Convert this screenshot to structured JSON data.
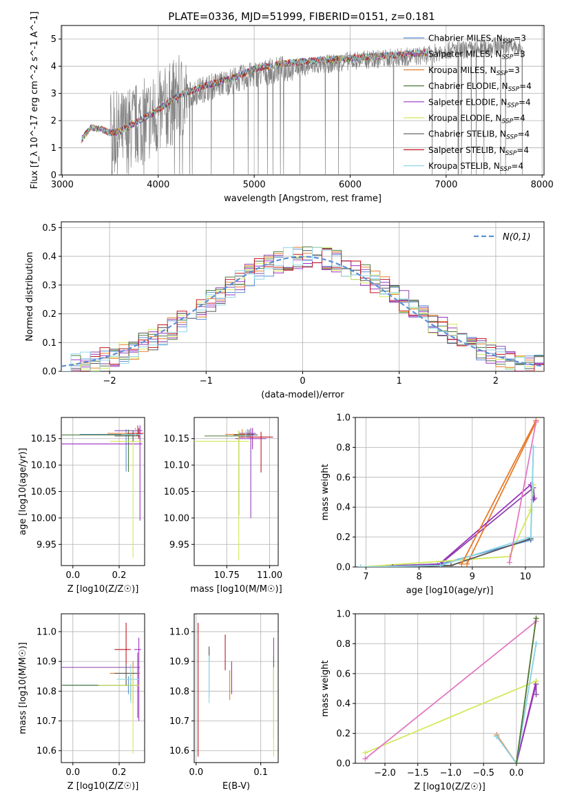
{
  "title": "PLATE=0336, MJD=51999, FIBERID=0151, z=0.181",
  "models": [
    {
      "name": "Chabrier MILES",
      "nssp": "3",
      "color": "#5b8fd6"
    },
    {
      "name": "Salpeter MILES",
      "nssp": "3",
      "color": "#8e44ad"
    },
    {
      "name": "Kroupa MILES",
      "nssp": "3",
      "color": "#e87a2a"
    },
    {
      "name": "Chabrier ELODIE",
      "nssp": "4",
      "color": "#4a7a3a"
    },
    {
      "name": "Salpeter ELODIE",
      "nssp": "4",
      "color": "#9b30c0"
    },
    {
      "name": "Kroupa ELODIE",
      "nssp": "4",
      "color": "#d4e85a"
    },
    {
      "name": "Chabrier STELIB",
      "nssp": "4",
      "color": "#555555"
    },
    {
      "name": "Salpeter STELIB",
      "nssp": "4",
      "color": "#c0141e"
    },
    {
      "name": "Kroupa STELIB",
      "nssp": "4",
      "color": "#8fd6e6"
    }
  ],
  "chart_data": [
    {
      "id": "spectrum",
      "type": "line",
      "xlabel": "wavelength [Angstrom, rest frame]",
      "ylabel": "Flux [f_λ 10^-17 erg cm^-2 s^-1 A^-1]",
      "xlim": [
        2990,
        8020
      ],
      "ylim": [
        0,
        5.5
      ],
      "xticks": [
        3000,
        4000,
        5000,
        6000,
        7000,
        8000
      ],
      "yticks": [
        0,
        1,
        2,
        3,
        4,
        5
      ],
      "data_color": "#808080",
      "data_envelope": {
        "x": [
          3200,
          3300,
          3400,
          3500,
          3600,
          3800,
          4000,
          4200,
          4500,
          4800,
          5000,
          5300,
          5600,
          6000,
          6400,
          6800,
          7000,
          7300,
          7600,
          7800
        ],
        "y": [
          1.3,
          1.7,
          1.7,
          1.5,
          1.5,
          1.9,
          2.2,
          2.8,
          3.2,
          3.5,
          3.7,
          3.9,
          4.0,
          4.2,
          4.3,
          4.4,
          4.6,
          4.6,
          4.8,
          4.6
        ]
      },
      "model_curve": {
        "x": [
          3200,
          3300,
          3400,
          3500,
          3600,
          3800,
          4000,
          4200,
          4500,
          4800,
          5000,
          5300,
          5600,
          6000,
          6400,
          6800
        ],
        "y": [
          1.3,
          1.75,
          1.7,
          1.55,
          1.6,
          2.0,
          2.4,
          2.9,
          3.3,
          3.6,
          3.9,
          4.1,
          4.2,
          4.3,
          4.4,
          4.5
        ]
      }
    },
    {
      "id": "residuals",
      "type": "histogram",
      "xlabel": "(data-model)/error",
      "ylabel": "Normed distribution",
      "xlim": [
        -2.5,
        2.5
      ],
      "ylim": [
        0,
        0.52
      ],
      "xticks": [
        -2,
        -1,
        0,
        1,
        2
      ],
      "yticks": [
        0.0,
        0.1,
        0.2,
        0.3,
        0.4,
        0.5
      ],
      "bin_width": 0.1,
      "legend_label": "N(0,1)",
      "gaussian": {
        "mean": 0,
        "sigma": 1,
        "color": "#5b8fd6"
      }
    },
    {
      "id": "age_vs_Z",
      "type": "scatter",
      "xlabel": "Z [log10(Z/Z☉)]",
      "ylabel": "age [log10(age/yr)]",
      "xlim": [
        -0.05,
        0.31
      ],
      "ylim": [
        9.91,
        10.19
      ],
      "xticks": [
        0.0,
        0.2
      ],
      "yticks": [
        9.95,
        10.0,
        10.05,
        10.1,
        10.15
      ],
      "points": [
        {
          "x": 0.23,
          "y": 10.158,
          "xerr": [
            0.2,
            0.05
          ],
          "yerr": [
            0.07,
            0.01
          ],
          "model": 0
        },
        {
          "x": 0.28,
          "y": 10.165,
          "xerr": [
            0.1,
            0.02
          ],
          "yerr": [
            0.01,
            0.01
          ],
          "model": 1
        },
        {
          "x": 0.27,
          "y": 10.16,
          "xerr": [
            0.12,
            0.02
          ],
          "yerr": [
            0.005,
            0.01
          ],
          "model": 2
        },
        {
          "x": 0.24,
          "y": 10.157,
          "xerr": [
            0.3,
            0.04
          ],
          "yerr": [
            0.07,
            0.01
          ],
          "model": 3
        },
        {
          "x": 0.29,
          "y": 10.14,
          "xerr": [
            0.36,
            0.01
          ],
          "yerr": [
            0.145,
            0.035
          ],
          "model": 4
        },
        {
          "x": 0.26,
          "y": 10.145,
          "xerr": [
            0.1,
            0.04
          ],
          "yerr": [
            0.22,
            0.02
          ],
          "model": 5
        },
        {
          "x": 0.26,
          "y": 10.155,
          "xerr": [
            0.08,
            0.03
          ],
          "yerr": [
            0.01,
            0.01
          ],
          "model": 6
        },
        {
          "x": 0.285,
          "y": 10.16,
          "xerr": [
            0.05,
            0.02
          ],
          "yerr": [
            0.01,
            0.01
          ],
          "model": 7
        },
        {
          "x": 0.27,
          "y": 10.158,
          "xerr": [
            0.06,
            0.03
          ],
          "yerr": [
            0.005,
            0.01
          ],
          "model": 8
        }
      ]
    },
    {
      "id": "age_vs_mass",
      "type": "scatter",
      "xlabel": "mass [log10(M/M☉)]",
      "ylabel": "",
      "xlim": [
        10.56,
        11.05
      ],
      "ylim": [
        9.91,
        10.19
      ],
      "xticks": [
        10.75,
        11.0
      ],
      "yticks": [
        9.95,
        10.0,
        10.05,
        10.1,
        10.15
      ],
      "points": [
        {
          "x": 10.87,
          "y": 10.158,
          "xerr": [
            0.05,
            0.04
          ],
          "yerr": [
            0.005,
            0.01
          ],
          "model": 0
        },
        {
          "x": 10.89,
          "y": 10.16,
          "xerr": [
            0.07,
            0.03
          ],
          "yerr": [
            0.16,
            0.01
          ],
          "model": 1
        },
        {
          "x": 10.84,
          "y": 10.158,
          "xerr": [
            0.1,
            0.05
          ],
          "yerr": [
            0.005,
            0.01
          ],
          "model": 2
        },
        {
          "x": 10.82,
          "y": 10.155,
          "xerr": [
            0.2,
            0.07
          ],
          "yerr": [
            0.15,
            0.01
          ],
          "model": 3
        },
        {
          "x": 10.9,
          "y": 10.15,
          "xerr": [
            0.1,
            0.08
          ],
          "yerr": [
            0.02,
            0.02
          ],
          "model": 4
        },
        {
          "x": 10.82,
          "y": 10.145,
          "xerr": [
            0.26,
            0.06
          ],
          "yerr": [
            0.225,
            0.02
          ],
          "model": 5
        },
        {
          "x": 10.88,
          "y": 10.157,
          "xerr": [
            0.09,
            0.05
          ],
          "yerr": [
            0.005,
            0.01
          ],
          "model": 6
        },
        {
          "x": 10.95,
          "y": 10.153,
          "xerr": [
            0.13,
            0.07
          ],
          "yerr": [
            0.067,
            0.01
          ],
          "model": 7
        },
        {
          "x": 10.86,
          "y": 10.155,
          "xerr": [
            0.04,
            0.03
          ],
          "yerr": [
            0.005,
            0.01
          ],
          "model": 8
        }
      ]
    },
    {
      "id": "mass_weight_vs_age",
      "type": "line",
      "xlabel": "age [log10(age/yr)]",
      "ylabel": "mass weight",
      "xlim": [
        6.8,
        10.35
      ],
      "ylim": [
        0,
        1.0
      ],
      "xticks": [
        7,
        8,
        9,
        10
      ],
      "yticks": [
        0.0,
        0.2,
        0.4,
        0.6,
        0.8,
        1.0
      ],
      "series": [
        {
          "model": 0,
          "x": [
            6.9,
            8.4,
            10.1,
            10.15
          ],
          "y": [
            0.0,
            0.02,
            0.18,
            0.8
          ]
        },
        {
          "model": 1,
          "x": [
            6.9,
            8.4,
            10.15,
            10.17
          ],
          "y": [
            0.0,
            0.02,
            0.53,
            0.46
          ]
        },
        {
          "model": 2,
          "x": [
            8.9,
            10.2
          ],
          "y": [
            0.02,
            0.97
          ]
        },
        {
          "model": 4,
          "x": [
            6.9,
            8.35,
            10.1,
            10.15
          ],
          "y": [
            0.0,
            0.01,
            0.55,
            0.45
          ]
        },
        {
          "model": 5,
          "x": [
            6.9,
            9.7,
            10.1,
            10.15
          ],
          "y": [
            0.0,
            0.07,
            0.38,
            0.55
          ]
        },
        {
          "model": 6,
          "x": [
            7.5,
            8.6,
            10.1
          ],
          "y": [
            0.0,
            0.01,
            0.19
          ]
        },
        {
          "model": 8,
          "x": [
            6.9,
            8.4,
            10.1,
            10.15
          ],
          "y": [
            0.0,
            0.01,
            0.2,
            0.8
          ]
        },
        {
          "model": 2,
          "x": [
            8.8,
            10.2
          ],
          "y": [
            0.02,
            0.98
          ]
        },
        {
          "model": 7,
          "x": [
            9.7,
            10.2
          ],
          "y": [
            0.03,
            0.97
          ]
        }
      ],
      "series_colors": {
        "7": "#e377c2"
      }
    },
    {
      "id": "mass_vs_Z",
      "type": "scatter",
      "xlabel": "Z [log10(Z/Z☉)]",
      "ylabel": "mass [log10(M/M☉)]",
      "xlim": [
        -0.05,
        0.31
      ],
      "ylim": [
        10.56,
        11.06
      ],
      "xticks": [
        0.0,
        0.2
      ],
      "yticks": [
        10.6,
        10.7,
        10.8,
        10.9,
        11.0
      ],
      "points": [
        {
          "x": 0.24,
          "y": 10.82,
          "xerr": [
            0.28,
            0.04
          ],
          "yerr": [
            0.03,
            0.03
          ],
          "model": 0
        },
        {
          "x": 0.28,
          "y": 10.88,
          "xerr": [
            0.33,
            0.01
          ],
          "yerr": [
            0.17,
            0.05
          ],
          "model": 1
        },
        {
          "x": 0.26,
          "y": 10.86,
          "xerr": [
            0.1,
            0.03
          ],
          "yerr": [
            0.1,
            0.04
          ],
          "model": 2
        },
        {
          "x": 0.25,
          "y": 10.82,
          "xerr": [
            0.3,
            0.03
          ],
          "yerr": [
            0.05,
            0.04
          ],
          "model": 3
        },
        {
          "x": 0.285,
          "y": 10.94,
          "xerr": [
            0.02,
            0.01
          ],
          "yerr": [
            0.24,
            0.04
          ],
          "model": 4
        },
        {
          "x": 0.26,
          "y": 10.82,
          "xerr": [
            0.15,
            0.03
          ],
          "yerr": [
            0.23,
            0.06
          ],
          "model": 5
        },
        {
          "x": 0.23,
          "y": 10.86,
          "xerr": [
            0.05,
            0.05
          ],
          "yerr": [
            0.04,
            0.03
          ],
          "model": 6
        },
        {
          "x": 0.23,
          "y": 10.94,
          "xerr": [
            0.05,
            0.02
          ],
          "yerr": [
            0.05,
            0.09
          ],
          "model": 7
        },
        {
          "x": 0.25,
          "y": 10.84,
          "xerr": [
            0.06,
            0.04
          ],
          "yerr": [
            0.08,
            0.05
          ],
          "model": 8
        }
      ]
    },
    {
      "id": "mass_vs_EBV",
      "type": "scatter",
      "xlabel": "E(B-V)",
      "ylabel": "",
      "xlim": [
        -0.003,
        0.127
      ],
      "ylim": [
        10.56,
        11.06
      ],
      "xticks": [
        0.0,
        0.1
      ],
      "yticks": [
        10.6,
        10.7,
        10.8,
        10.9,
        11.0
      ],
      "points": [
        {
          "x": 0.02,
          "y": 10.88,
          "xerr": [
            0,
            0
          ],
          "yerr": [
            0.1,
            0.06
          ],
          "model": 0
        },
        {
          "x": 0.12,
          "y": 10.9,
          "xerr": [
            0,
            0
          ],
          "yerr": [
            0.11,
            0.08
          ],
          "model": 1
        },
        {
          "x": 0.052,
          "y": 10.82,
          "xerr": [
            0,
            0
          ],
          "yerr": [
            0.05,
            0.05
          ],
          "model": 2
        },
        {
          "x": 0.12,
          "y": 10.87,
          "xerr": [
            0,
            0
          ],
          "yerr": [
            0.23,
            0.05
          ],
          "model": 3
        },
        {
          "x": 0.055,
          "y": 10.84,
          "xerr": [
            0,
            0
          ],
          "yerr": [
            0.05,
            0.06
          ],
          "model": 4
        },
        {
          "x": 0.12,
          "y": 10.82,
          "xerr": [
            0,
            0
          ],
          "yerr": [
            0.24,
            0.06
          ],
          "model": 5
        },
        {
          "x": 0.02,
          "y": 10.92,
          "xerr": [
            0,
            0
          ],
          "yerr": [
            0.02,
            0.03
          ],
          "model": 6
        },
        {
          "x": 0.003,
          "y": 10.9,
          "xerr": [
            0,
            0
          ],
          "yerr": [
            0.32,
            0.13
          ],
          "model": 7
        },
        {
          "x": 0.02,
          "y": 10.86,
          "xerr": [
            0,
            0
          ],
          "yerr": [
            0.1,
            0.06
          ],
          "model": 8
        },
        {
          "x": 0.045,
          "y": 10.92,
          "xerr": [
            0,
            0
          ],
          "yerr": [
            0.05,
            0.07
          ],
          "model": 7
        }
      ]
    },
    {
      "id": "mass_weight_vs_Z",
      "type": "line",
      "xlabel": "Z [log10(Z/Z☉)]",
      "ylabel": "mass weight",
      "xlim": [
        -2.45,
        0.42
      ],
      "ylim": [
        0,
        1.0
      ],
      "xticks": [
        -2.0,
        -1.5,
        -1.0,
        -0.5,
        0.0
      ],
      "yticks": [
        0.0,
        0.2,
        0.4,
        0.6,
        0.8,
        1.0
      ],
      "series": [
        {
          "model": 0,
          "x": [
            -0.3,
            0.0,
            0.3
          ],
          "y": [
            0.18,
            0.0,
            0.8
          ]
        },
        {
          "model": 1,
          "x": [
            0.0,
            0.3,
            0.3
          ],
          "y": [
            0.0,
            0.53,
            0.46
          ]
        },
        {
          "model": 2,
          "x": [
            -0.3,
            0.0,
            0.3
          ],
          "y": [
            0.19,
            0.0,
            0.97
          ]
        },
        {
          "model": 4,
          "x": [
            0.0,
            0.3
          ],
          "y": [
            0.0,
            0.55
          ]
        },
        {
          "model": 5,
          "x": [
            -2.3,
            0.3
          ],
          "y": [
            0.07,
            0.55
          ]
        },
        {
          "model": 8,
          "x": [
            -0.3,
            0.0,
            0.3
          ],
          "y": [
            0.18,
            0.0,
            0.8
          ]
        },
        {
          "model": 7,
          "x": [
            -2.3,
            0.3
          ],
          "y": [
            0.03,
            0.95
          ]
        },
        {
          "model": 3,
          "x": [
            0.0,
            0.3
          ],
          "y": [
            0.0,
            0.97
          ]
        }
      ],
      "series_colors": {
        "7": "#e377c2"
      }
    }
  ]
}
